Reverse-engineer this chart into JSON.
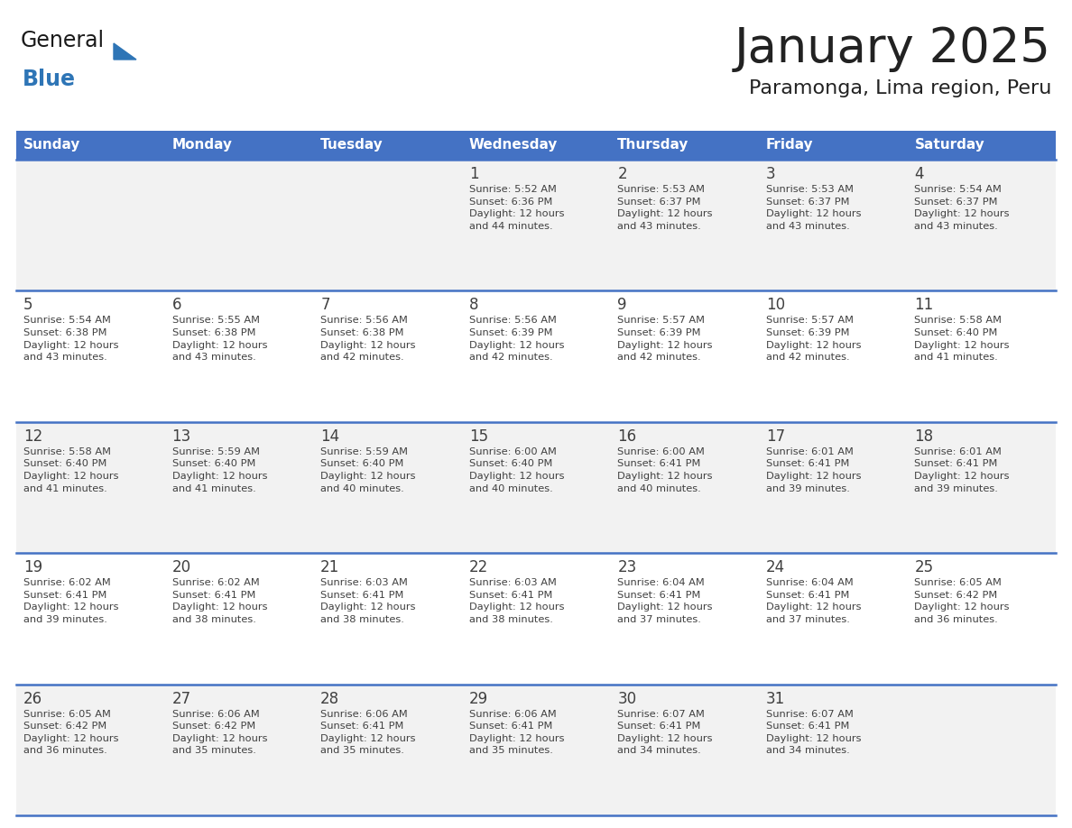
{
  "title": "January 2025",
  "subtitle": "Paramonga, Lima region, Peru",
  "days_of_week": [
    "Sunday",
    "Monday",
    "Tuesday",
    "Wednesday",
    "Thursday",
    "Friday",
    "Saturday"
  ],
  "header_bg": "#4472C4",
  "header_text": "#FFFFFF",
  "cell_bg_odd": "#F2F2F2",
  "cell_bg_even": "#FFFFFF",
  "separator_color": "#4472C4",
  "text_color": "#404040",
  "title_color": "#222222",
  "logo_general_color": "#1a1a1a",
  "logo_blue_color": "#2E75B6",
  "days": [
    {
      "day": 1,
      "col": 3,
      "row": 0,
      "sunrise": "5:52 AM",
      "sunset": "6:36 PM",
      "daylight_mins": 44
    },
    {
      "day": 2,
      "col": 4,
      "row": 0,
      "sunrise": "5:53 AM",
      "sunset": "6:37 PM",
      "daylight_mins": 43
    },
    {
      "day": 3,
      "col": 5,
      "row": 0,
      "sunrise": "5:53 AM",
      "sunset": "6:37 PM",
      "daylight_mins": 43
    },
    {
      "day": 4,
      "col": 6,
      "row": 0,
      "sunrise": "5:54 AM",
      "sunset": "6:37 PM",
      "daylight_mins": 43
    },
    {
      "day": 5,
      "col": 0,
      "row": 1,
      "sunrise": "5:54 AM",
      "sunset": "6:38 PM",
      "daylight_mins": 43
    },
    {
      "day": 6,
      "col": 1,
      "row": 1,
      "sunrise": "5:55 AM",
      "sunset": "6:38 PM",
      "daylight_mins": 43
    },
    {
      "day": 7,
      "col": 2,
      "row": 1,
      "sunrise": "5:56 AM",
      "sunset": "6:38 PM",
      "daylight_mins": 42
    },
    {
      "day": 8,
      "col": 3,
      "row": 1,
      "sunrise": "5:56 AM",
      "sunset": "6:39 PM",
      "daylight_mins": 42
    },
    {
      "day": 9,
      "col": 4,
      "row": 1,
      "sunrise": "5:57 AM",
      "sunset": "6:39 PM",
      "daylight_mins": 42
    },
    {
      "day": 10,
      "col": 5,
      "row": 1,
      "sunrise": "5:57 AM",
      "sunset": "6:39 PM",
      "daylight_mins": 42
    },
    {
      "day": 11,
      "col": 6,
      "row": 1,
      "sunrise": "5:58 AM",
      "sunset": "6:40 PM",
      "daylight_mins": 41
    },
    {
      "day": 12,
      "col": 0,
      "row": 2,
      "sunrise": "5:58 AM",
      "sunset": "6:40 PM",
      "daylight_mins": 41
    },
    {
      "day": 13,
      "col": 1,
      "row": 2,
      "sunrise": "5:59 AM",
      "sunset": "6:40 PM",
      "daylight_mins": 41
    },
    {
      "day": 14,
      "col": 2,
      "row": 2,
      "sunrise": "5:59 AM",
      "sunset": "6:40 PM",
      "daylight_mins": 40
    },
    {
      "day": 15,
      "col": 3,
      "row": 2,
      "sunrise": "6:00 AM",
      "sunset": "6:40 PM",
      "daylight_mins": 40
    },
    {
      "day": 16,
      "col": 4,
      "row": 2,
      "sunrise": "6:00 AM",
      "sunset": "6:41 PM",
      "daylight_mins": 40
    },
    {
      "day": 17,
      "col": 5,
      "row": 2,
      "sunrise": "6:01 AM",
      "sunset": "6:41 PM",
      "daylight_mins": 39
    },
    {
      "day": 18,
      "col": 6,
      "row": 2,
      "sunrise": "6:01 AM",
      "sunset": "6:41 PM",
      "daylight_mins": 39
    },
    {
      "day": 19,
      "col": 0,
      "row": 3,
      "sunrise": "6:02 AM",
      "sunset": "6:41 PM",
      "daylight_mins": 39
    },
    {
      "day": 20,
      "col": 1,
      "row": 3,
      "sunrise": "6:02 AM",
      "sunset": "6:41 PM",
      "daylight_mins": 38
    },
    {
      "day": 21,
      "col": 2,
      "row": 3,
      "sunrise": "6:03 AM",
      "sunset": "6:41 PM",
      "daylight_mins": 38
    },
    {
      "day": 22,
      "col": 3,
      "row": 3,
      "sunrise": "6:03 AM",
      "sunset": "6:41 PM",
      "daylight_mins": 38
    },
    {
      "day": 23,
      "col": 4,
      "row": 3,
      "sunrise": "6:04 AM",
      "sunset": "6:41 PM",
      "daylight_mins": 37
    },
    {
      "day": 24,
      "col": 5,
      "row": 3,
      "sunrise": "6:04 AM",
      "sunset": "6:41 PM",
      "daylight_mins": 37
    },
    {
      "day": 25,
      "col": 6,
      "row": 3,
      "sunrise": "6:05 AM",
      "sunset": "6:42 PM",
      "daylight_mins": 36
    },
    {
      "day": 26,
      "col": 0,
      "row": 4,
      "sunrise": "6:05 AM",
      "sunset": "6:42 PM",
      "daylight_mins": 36
    },
    {
      "day": 27,
      "col": 1,
      "row": 4,
      "sunrise": "6:06 AM",
      "sunset": "6:42 PM",
      "daylight_mins": 35
    },
    {
      "day": 28,
      "col": 2,
      "row": 4,
      "sunrise": "6:06 AM",
      "sunset": "6:41 PM",
      "daylight_mins": 35
    },
    {
      "day": 29,
      "col": 3,
      "row": 4,
      "sunrise": "6:06 AM",
      "sunset": "6:41 PM",
      "daylight_mins": 35
    },
    {
      "day": 30,
      "col": 4,
      "row": 4,
      "sunrise": "6:07 AM",
      "sunset": "6:41 PM",
      "daylight_mins": 34
    },
    {
      "day": 31,
      "col": 5,
      "row": 4,
      "sunrise": "6:07 AM",
      "sunset": "6:41 PM",
      "daylight_mins": 34
    }
  ]
}
